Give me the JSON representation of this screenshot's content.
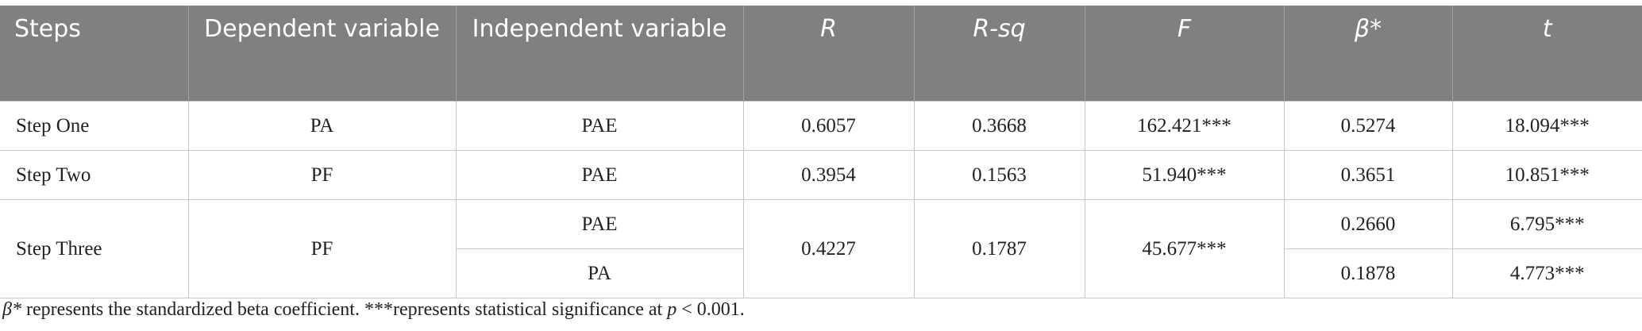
{
  "table": {
    "header": [
      "Steps",
      "Dependent variable",
      "Independent variable",
      "R",
      "R-sq",
      "F",
      "β*",
      "t"
    ],
    "rows": [
      [
        "Step One",
        "PA",
        "PAE",
        "0.6057",
        "0.3668",
        "162.421***",
        "0.5274",
        "18.094***"
      ],
      [
        "Step Two",
        "PF",
        "PAE",
        "0.3954",
        "0.1563",
        "51.940***",
        "0.3651",
        "10.851***"
      ],
      [
        "Step Three",
        "PF",
        "PAE",
        "0.4227",
        "0.1787",
        "45.677***",
        "0.2660",
        "6.795***"
      ],
      [
        "PA",
        "0.1878",
        "4.773***"
      ]
    ]
  },
  "footnote": [
    "β*",
    " represents the standardized beta coefficient. ***represents statistical significance at ",
    "p",
    " < 0.001."
  ]
}
